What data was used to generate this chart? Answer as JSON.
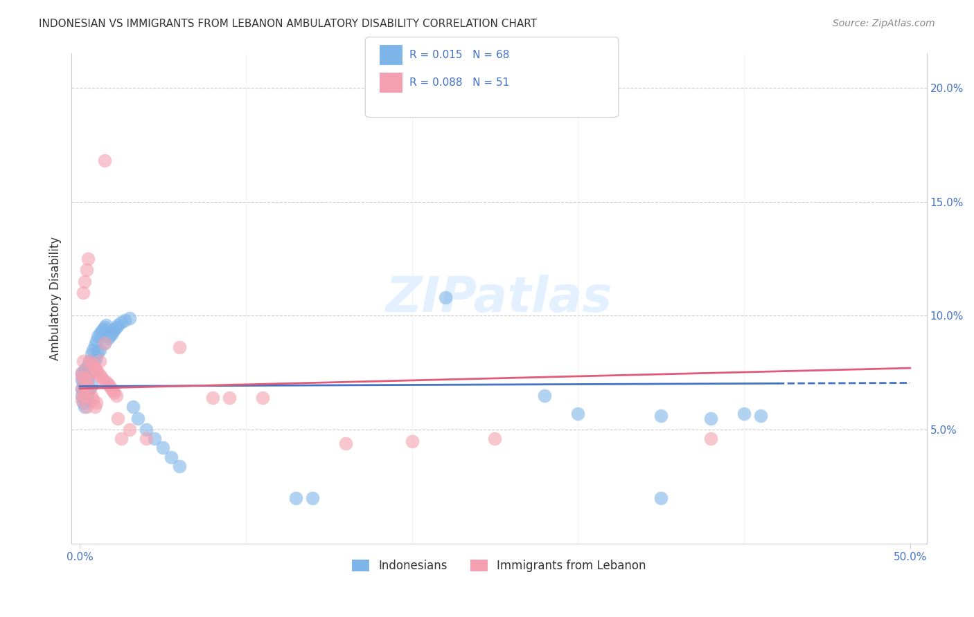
{
  "title": "INDONESIAN VS IMMIGRANTS FROM LEBANON AMBULATORY DISABILITY CORRELATION CHART",
  "source": "Source: ZipAtlas.com",
  "ylabel": "Ambulatory Disability",
  "yticks": [
    "5.0%",
    "10.0%",
    "15.0%",
    "20.0%"
  ],
  "ytick_vals": [
    0.05,
    0.1,
    0.15,
    0.2
  ],
  "legend_label1": "Indonesians",
  "legend_label2": "Immigrants from Lebanon",
  "r1": 0.015,
  "n1": 68,
  "r2": 0.088,
  "n2": 51,
  "color_blue": "#7EB5E8",
  "color_pink": "#F4A0B0",
  "line_blue": "#4472C4",
  "line_pink": "#E05A7A",
  "watermark": "ZIPatlas",
  "indonesian_x": [
    0.001,
    0.001,
    0.001,
    0.001,
    0.002,
    0.002,
    0.002,
    0.002,
    0.002,
    0.003,
    0.003,
    0.003,
    0.003,
    0.004,
    0.004,
    0.004,
    0.004,
    0.005,
    0.005,
    0.005,
    0.006,
    0.006,
    0.006,
    0.007,
    0.007,
    0.007,
    0.008,
    0.008,
    0.009,
    0.009,
    0.01,
    0.01,
    0.011,
    0.011,
    0.012,
    0.012,
    0.013,
    0.014,
    0.015,
    0.015,
    0.016,
    0.017,
    0.018,
    0.019,
    0.02,
    0.021,
    0.022,
    0.023,
    0.025,
    0.027,
    0.03,
    0.032,
    0.035,
    0.04,
    0.045,
    0.05,
    0.055,
    0.06,
    0.14,
    0.22,
    0.28,
    0.3,
    0.35,
    0.38,
    0.4,
    0.41,
    0.35,
    0.13
  ],
  "indonesian_y": [
    0.075,
    0.072,
    0.068,
    0.065,
    0.073,
    0.07,
    0.067,
    0.064,
    0.062,
    0.076,
    0.071,
    0.066,
    0.06,
    0.077,
    0.073,
    0.068,
    0.063,
    0.078,
    0.072,
    0.066,
    0.08,
    0.074,
    0.068,
    0.083,
    0.076,
    0.069,
    0.085,
    0.078,
    0.087,
    0.08,
    0.089,
    0.082,
    0.091,
    0.084,
    0.092,
    0.085,
    0.093,
    0.094,
    0.095,
    0.088,
    0.096,
    0.09,
    0.091,
    0.092,
    0.093,
    0.094,
    0.095,
    0.096,
    0.097,
    0.098,
    0.099,
    0.06,
    0.055,
    0.05,
    0.046,
    0.042,
    0.038,
    0.034,
    0.02,
    0.108,
    0.065,
    0.057,
    0.056,
    0.055,
    0.057,
    0.056,
    0.02,
    0.02
  ],
  "lebanon_x": [
    0.001,
    0.001,
    0.001,
    0.001,
    0.002,
    0.002,
    0.002,
    0.003,
    0.003,
    0.003,
    0.004,
    0.004,
    0.004,
    0.005,
    0.005,
    0.006,
    0.006,
    0.007,
    0.007,
    0.008,
    0.008,
    0.009,
    0.009,
    0.01,
    0.01,
    0.011,
    0.012,
    0.013,
    0.014,
    0.015,
    0.016,
    0.017,
    0.018,
    0.019,
    0.02,
    0.021,
    0.022,
    0.023,
    0.025,
    0.04,
    0.06,
    0.08,
    0.09,
    0.11,
    0.16,
    0.2,
    0.25,
    0.38,
    0.03,
    0.015,
    0.012
  ],
  "lebanon_y": [
    0.075,
    0.073,
    0.068,
    0.063,
    0.11,
    0.08,
    0.065,
    0.115,
    0.072,
    0.065,
    0.12,
    0.073,
    0.06,
    0.125,
    0.072,
    0.08,
    0.068,
    0.079,
    0.065,
    0.078,
    0.063,
    0.077,
    0.06,
    0.076,
    0.062,
    0.075,
    0.074,
    0.073,
    0.072,
    0.088,
    0.071,
    0.07,
    0.069,
    0.068,
    0.067,
    0.066,
    0.065,
    0.055,
    0.046,
    0.046,
    0.086,
    0.064,
    0.064,
    0.064,
    0.044,
    0.045,
    0.046,
    0.046,
    0.05,
    0.168,
    0.08
  ]
}
